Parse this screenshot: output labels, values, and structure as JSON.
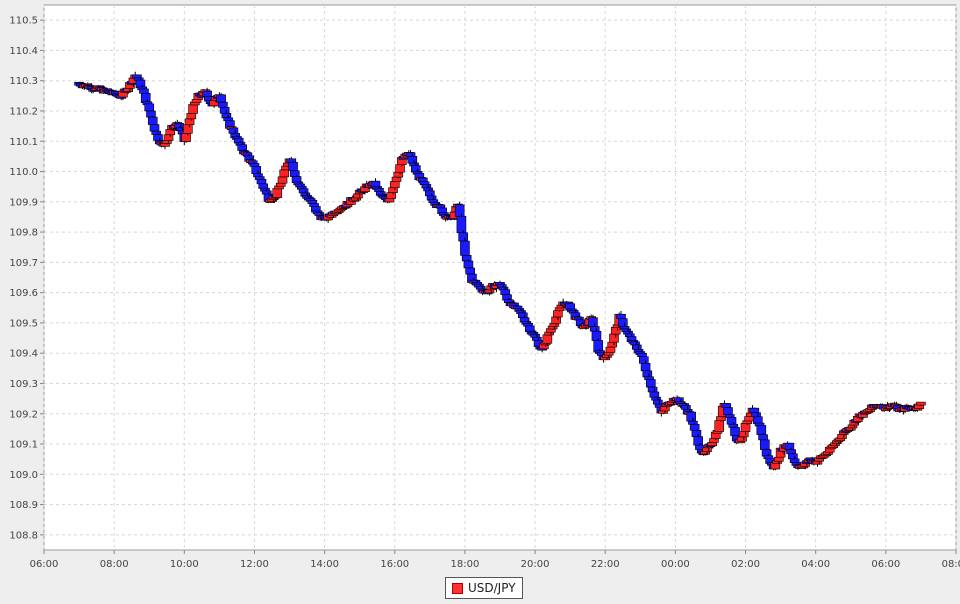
{
  "chart_data": {
    "type": "candlestick",
    "x_axis": {
      "type": "time",
      "ticks": [
        "06:00",
        "08:00",
        "10:00",
        "12:00",
        "14:00",
        "16:00",
        "18:00",
        "20:00",
        "22:00",
        "00:00",
        "02:00",
        "04:00",
        "06:00",
        "08:00"
      ],
      "range": [
        "06:00",
        "08:00 (next day)"
      ]
    },
    "y_axis": {
      "ylim": [
        108.75,
        110.55
      ],
      "ticks": [
        108.8,
        108.9,
        109.0,
        109.1,
        109.2,
        109.3,
        109.4,
        109.5,
        109.6,
        109.7,
        109.8,
        109.9,
        110.0,
        110.1,
        110.2,
        110.3,
        110.4,
        110.5
      ],
      "tick_labels": [
        "108.8",
        "108.9",
        "109.0",
        "109.1",
        "109.2",
        "109.3",
        "109.4",
        "109.5",
        "109.6",
        "109.7",
        "109.8",
        "109.9",
        "110.0",
        "110.1",
        "110.2",
        "110.3",
        "110.4",
        "110.5"
      ]
    },
    "grid": true,
    "legend": {
      "placement": "bottom-center",
      "entries": [
        "USD/JPY"
      ]
    },
    "colors": {
      "up": "#ff2222",
      "down": "#1a1aff",
      "wick": "#000000",
      "grid": "#d8d8d8"
    },
    "price_path": {
      "hours": [
        7.0,
        7.3,
        7.6,
        7.9,
        8.2,
        8.4,
        8.6,
        8.8,
        9.0,
        9.2,
        9.4,
        9.6,
        9.8,
        10.0,
        10.2,
        10.4,
        10.6,
        10.8,
        11.0,
        11.2,
        11.4,
        11.6,
        11.8,
        12.0,
        12.2,
        12.4,
        12.6,
        12.8,
        13.0,
        13.2,
        13.4,
        13.6,
        13.8,
        14.0,
        14.2,
        14.4,
        14.6,
        14.8,
        15.0,
        15.2,
        15.4,
        15.6,
        15.8,
        16.0,
        16.2,
        16.4,
        16.6,
        16.8,
        17.0,
        17.2,
        17.4,
        17.6,
        17.8,
        18.0,
        18.2,
        18.4,
        18.6,
        18.8,
        19.0,
        19.2,
        19.4,
        19.6,
        19.8,
        20.0,
        20.2,
        20.4,
        20.6,
        20.8,
        21.0,
        21.2,
        21.4,
        21.6,
        21.8,
        22.0,
        22.2,
        22.4,
        22.6,
        22.8,
        23.0,
        23.2,
        23.4,
        23.6,
        23.8,
        24.0,
        24.2,
        24.4,
        24.6,
        24.8,
        25.0,
        25.2,
        25.4,
        25.6,
        25.8,
        26.0,
        26.2,
        26.4,
        26.6,
        26.8,
        27.0,
        27.2,
        27.4,
        27.6,
        27.8,
        28.0,
        28.2,
        28.4,
        28.6,
        28.8,
        29.0,
        29.2,
        29.4,
        29.6,
        29.8,
        30.0,
        30.2,
        30.4,
        30.6,
        30.8,
        31.0
      ],
      "prices": [
        110.29,
        110.28,
        110.27,
        110.26,
        110.25,
        110.28,
        110.32,
        110.27,
        110.2,
        110.12,
        110.08,
        110.14,
        110.16,
        110.1,
        110.2,
        110.25,
        110.26,
        110.22,
        110.26,
        110.17,
        110.13,
        110.08,
        110.05,
        110.01,
        109.96,
        109.91,
        109.92,
        109.98,
        110.05,
        109.97,
        109.93,
        109.9,
        109.86,
        109.84,
        109.86,
        109.88,
        109.89,
        109.91,
        109.93,
        109.95,
        109.96,
        109.92,
        109.9,
        109.97,
        110.04,
        110.06,
        110.0,
        109.96,
        109.92,
        109.89,
        109.86,
        109.84,
        109.89,
        109.72,
        109.64,
        109.62,
        109.6,
        109.62,
        109.63,
        109.58,
        109.55,
        109.53,
        109.49,
        109.45,
        109.41,
        109.47,
        109.52,
        109.57,
        109.55,
        109.51,
        109.48,
        109.52,
        109.41,
        109.38,
        109.44,
        109.52,
        109.47,
        109.43,
        109.4,
        109.33,
        109.26,
        109.2,
        109.24,
        109.25,
        109.23,
        109.2,
        109.12,
        109.06,
        109.1,
        109.15,
        109.24,
        109.17,
        109.1,
        109.16,
        109.21,
        109.16,
        109.06,
        109.02,
        109.08,
        109.1,
        109.04,
        109.02,
        109.05,
        109.04,
        109.06,
        109.08,
        109.11,
        109.14,
        109.16,
        109.19,
        109.2,
        109.22,
        109.23,
        109.22,
        109.23,
        109.21,
        109.22,
        109.22,
        109.23
      ]
    }
  },
  "legend": {
    "label": "USD/JPY"
  }
}
